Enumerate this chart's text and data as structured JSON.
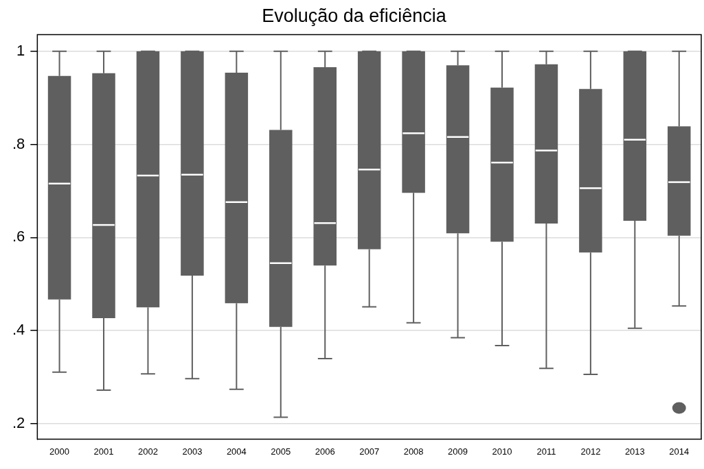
{
  "chart_data": {
    "type": "box",
    "title": "Evolução da eficiência",
    "categories": [
      "2000",
      "2001",
      "2002",
      "2003",
      "2004",
      "2005",
      "2006",
      "2007",
      "2008",
      "2009",
      "2010",
      "2011",
      "2012",
      "2013",
      "2014"
    ],
    "color": "#5f5f5f",
    "boxes": [
      {
        "low": 0.311,
        "q1": 0.467,
        "median": 0.716,
        "q3": 0.947,
        "high": 1
      },
      {
        "low": 0.272,
        "q1": 0.427,
        "median": 0.627,
        "q3": 0.953,
        "high": 1
      },
      {
        "low": 0.307,
        "q1": 0.45,
        "median": 0.733,
        "q3": 1,
        "high": 1
      },
      {
        "low": 0.297,
        "q1": 0.518,
        "median": 0.735,
        "q3": 1,
        "high": 1
      },
      {
        "low": 0.274,
        "q1": 0.459,
        "median": 0.676,
        "q3": 0.954,
        "high": 1
      },
      {
        "low": 0.214,
        "q1": 0.408,
        "median": 0.545,
        "q3": 0.831,
        "high": 1
      },
      {
        "low": 0.34,
        "q1": 0.54,
        "median": 0.631,
        "q3": 0.966,
        "high": 1
      },
      {
        "low": 0.451,
        "q1": 0.575,
        "median": 0.746,
        "q3": 1,
        "high": 1
      },
      {
        "low": 0.417,
        "q1": 0.696,
        "median": 0.824,
        "q3": 1,
        "high": 1
      },
      {
        "low": 0.385,
        "q1": 0.609,
        "median": 0.816,
        "q3": 0.97,
        "high": 1
      },
      {
        "low": 0.368,
        "q1": 0.591,
        "median": 0.761,
        "q3": 0.922,
        "high": 1
      },
      {
        "low": 0.319,
        "q1": 0.63,
        "median": 0.787,
        "q3": 0.972,
        "high": 1
      },
      {
        "low": 0.306,
        "q1": 0.568,
        "median": 0.706,
        "q3": 0.919,
        "high": 1
      },
      {
        "low": 0.405,
        "q1": 0.636,
        "median": 0.81,
        "q3": 1,
        "high": 1
      },
      {
        "low": 0.453,
        "q1": 0.604,
        "median": 0.719,
        "q3": 0.839,
        "high": 1,
        "outliers": [
          0.234
        ]
      }
    ],
    "ylim": [
      0.167,
      1.036
    ],
    "yticks": [
      {
        "value": 0.2,
        "label": ".2"
      },
      {
        "value": 0.4,
        "label": ".4"
      },
      {
        "value": 0.6,
        "label": ".6"
      },
      {
        "value": 0.8,
        "label": ".8"
      },
      1
    ],
    "grid": "y",
    "legend": false
  }
}
